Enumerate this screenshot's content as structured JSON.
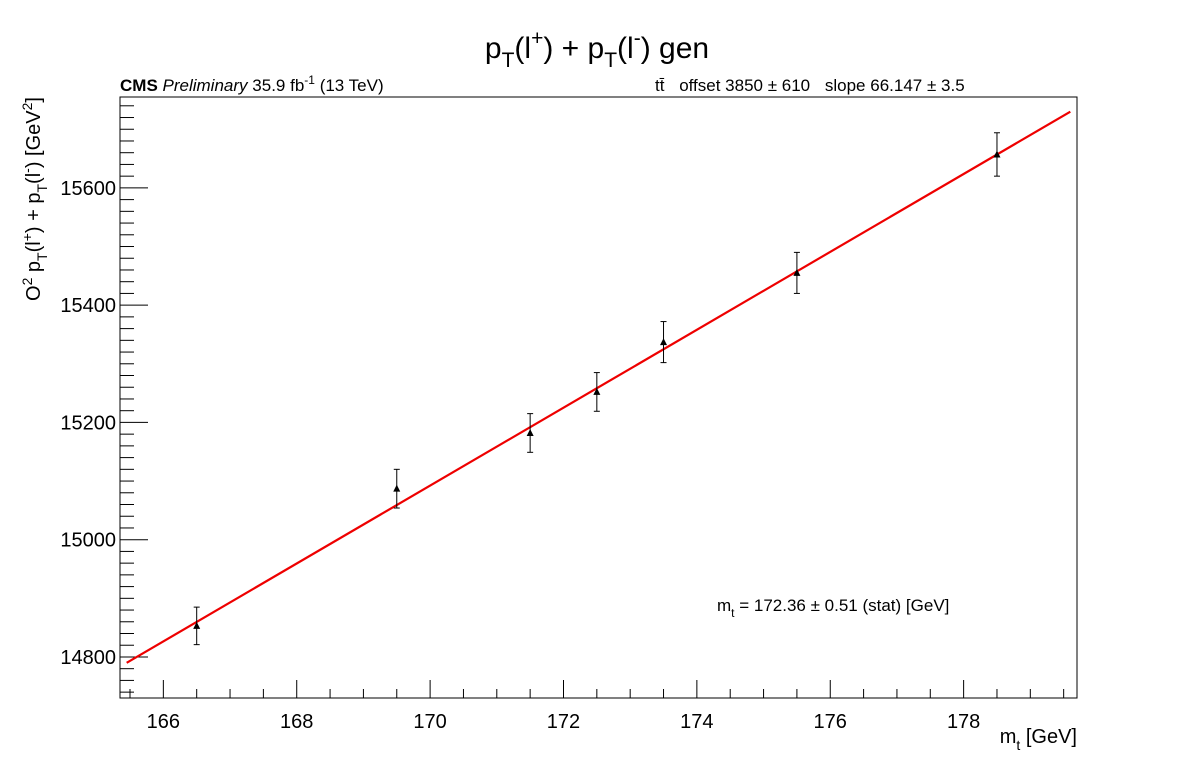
{
  "chart_data": {
    "type": "scatter",
    "title": {
      "main": "p",
      "sub1": "T",
      "mid1": "(l",
      "sup1": "+",
      "mid2": ") + p",
      "sub2": "T",
      "mid3": "(l",
      "sup2": "-",
      "end": ") gen"
    },
    "header_left": {
      "cms": "CMS",
      "prelim": "Preliminary",
      "lumi": "35.9 fb",
      "lumi_sup": "-1",
      "energy": "(13 TeV)"
    },
    "header_right": {
      "process": "tt̄",
      "offset": "offset 3850 ± 610",
      "slope": "slope 66.147 ± 3.5"
    },
    "xlabel": {
      "base": "m",
      "sub": "t",
      "rest": " [GeV]"
    },
    "ylabel": {
      "o": "O",
      "o_sup": "2",
      "p1": " p",
      "s1": "T",
      "l1": "(l",
      "u1": "+",
      "p2": ") + p",
      "s2": "T",
      "l2": "(l",
      "u2": "-",
      "r": ") [GeV",
      "u3": "2",
      "end": "]"
    },
    "annotation": {
      "base": "m",
      "sub": "t",
      "rest": " = 172.36 ± 0.51 (stat) [GeV]"
    },
    "xlim": [
      165.35,
      179.7
    ],
    "ylim": [
      14730,
      15755
    ],
    "x_ticks": [
      166,
      168,
      170,
      172,
      174,
      176,
      178
    ],
    "y_ticks": [
      14800,
      15000,
      15200,
      15400,
      15600
    ],
    "grid": false,
    "series": [
      {
        "marker": "triangle",
        "x": [
          166.5,
          169.5,
          171.5,
          172.5,
          173.5,
          175.5,
          178.5
        ],
        "y": [
          14853,
          15087,
          15182,
          15252,
          15337,
          15455,
          15657
        ],
        "yerr": [
          32,
          33,
          33,
          33,
          35,
          35,
          37
        ]
      }
    ],
    "fit": {
      "color": "#ee0000",
      "x": [
        165.45,
        179.6
      ],
      "y": [
        14790,
        15730
      ]
    }
  }
}
